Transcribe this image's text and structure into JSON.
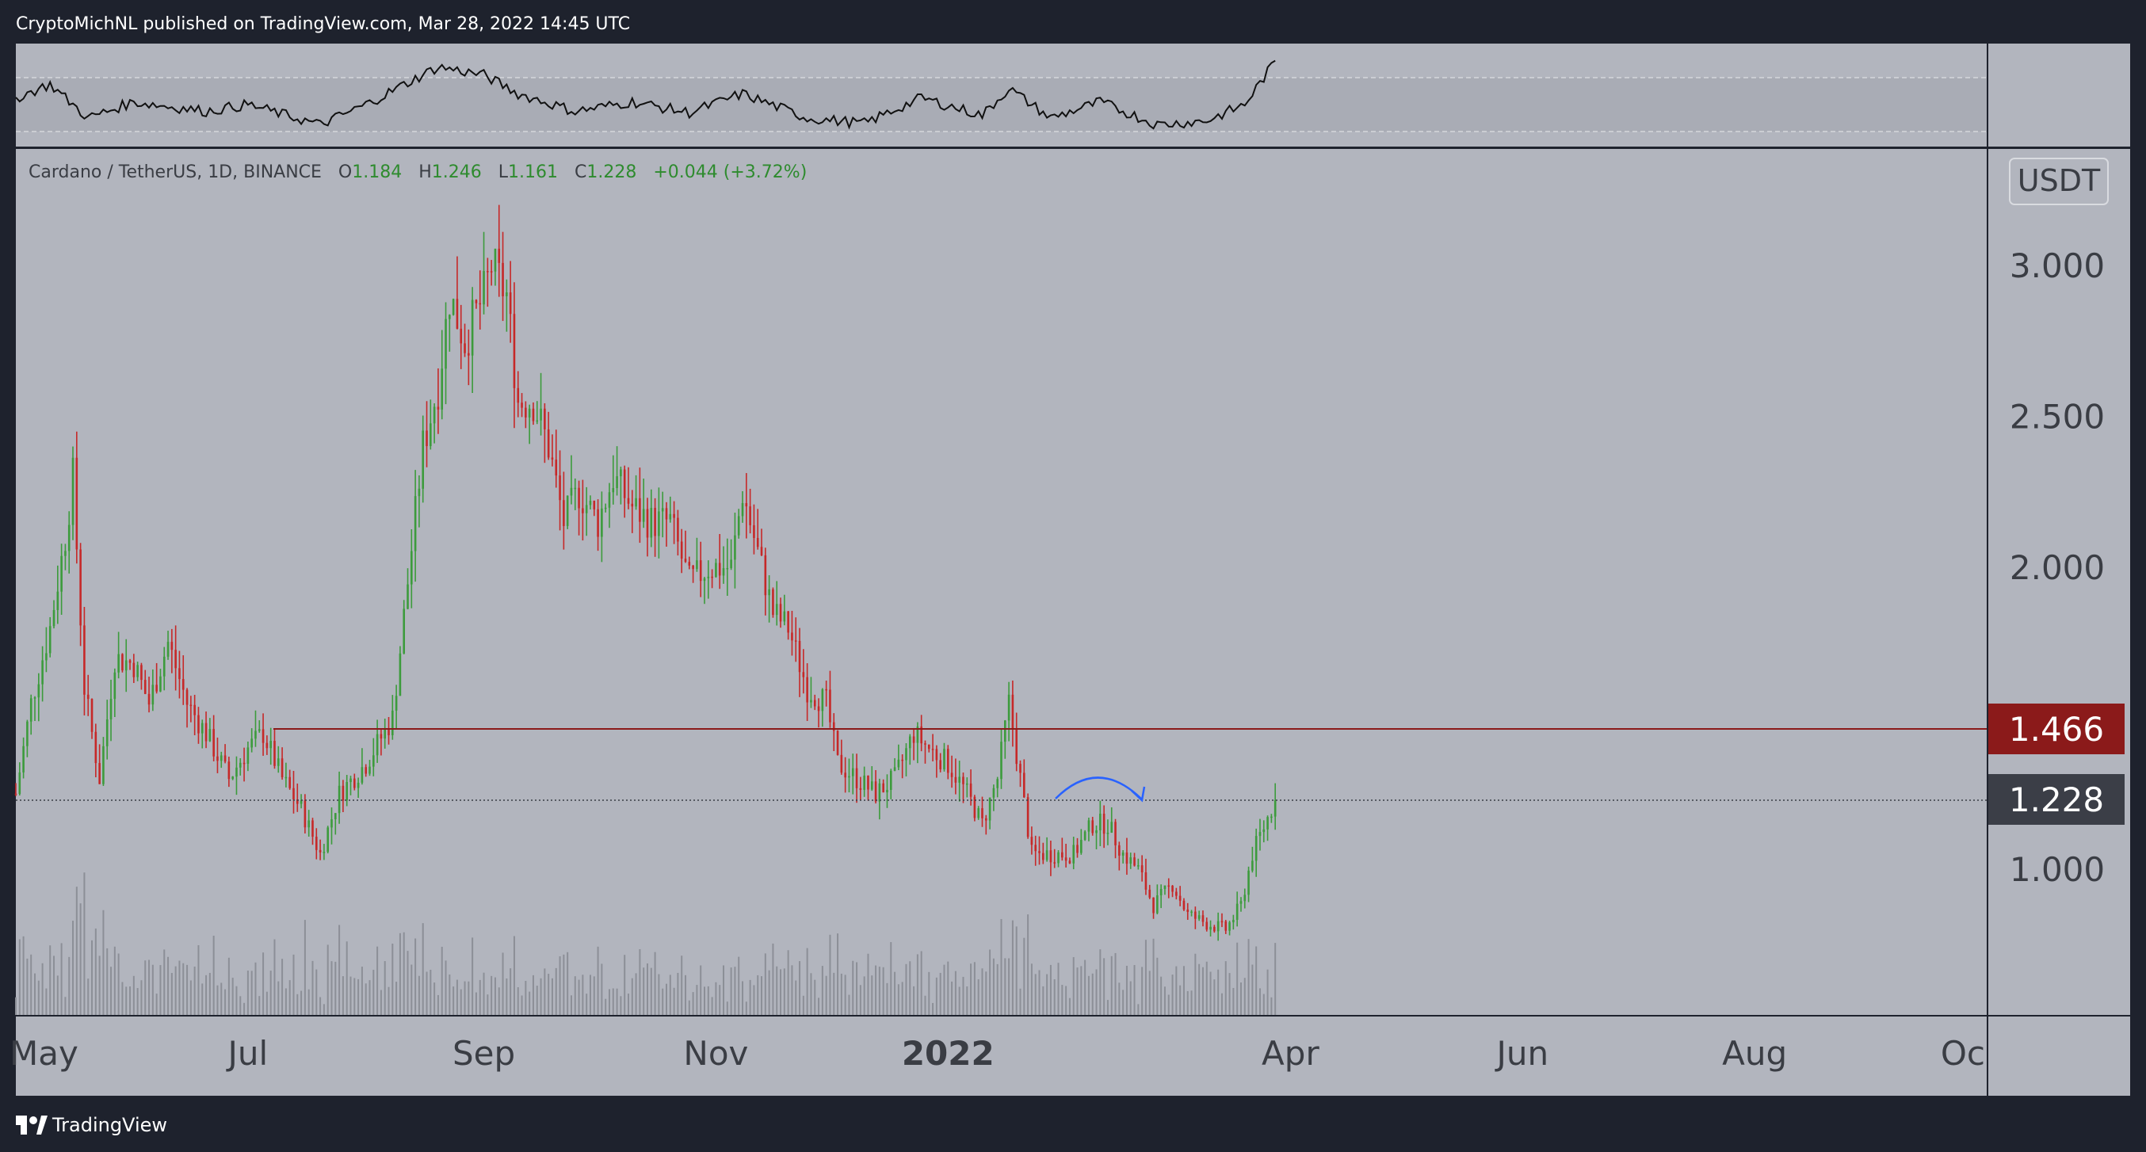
{
  "header": {
    "published": "CryptoMichNL published on TradingView.com, Mar 28, 2022 14:45 UTC"
  },
  "footer": {
    "brand": "TradingView"
  },
  "legend": {
    "symbol": "Cardano / TetherUS, 1D, BINANCE",
    "open_label": "O",
    "open": "1.184",
    "high_label": "H",
    "high": "1.246",
    "low_label": "L",
    "low": "1.161",
    "close_label": "C",
    "close": "1.228",
    "change": "+0.044 (+3.72%)"
  },
  "currency": "USDT",
  "price_tags": {
    "resistance": "1.466",
    "last": "1.228"
  },
  "colors": {
    "background": "#b2b5be",
    "frame": "#1e222d",
    "up": "#26a69a",
    "up_candle": "#3c9b3c",
    "down": "#c62828",
    "resistance_line": "#8b1a1a",
    "resistance_tag": "#8b1a1a",
    "last_tag": "#3b3e47",
    "arrow": "#2962ff",
    "text_dark": "#4a4e57",
    "legend_green": "#2e8b2e"
  },
  "chart_data": {
    "type": "candlestick",
    "pair": "ADA/USDT",
    "timeframe": "1D",
    "x_range": [
      "2021-05-01",
      "2022-10-01"
    ],
    "y_range": [
      0.5,
      3.5
    ],
    "y_ticks": [
      "3.000",
      "2.500",
      "2.000",
      "1.000"
    ],
    "y_tick_values": [
      3.0,
      2.5,
      2.0,
      1.0
    ],
    "x_ticks": [
      "May",
      "Jul",
      "Sep",
      "Nov",
      "2022",
      "Apr",
      "Jun",
      "Aug",
      "Oc"
    ],
    "x_tick_dates": [
      "2021-05-01",
      "2021-07-01",
      "2021-09-01",
      "2021-11-01",
      "2022-01-01",
      "2022-04-01",
      "2022-06-01",
      "2022-08-01",
      "2022-10-01"
    ],
    "resistance_level": 1.466,
    "last_price": 1.228,
    "price_path": [
      {
        "date": "2021-05-01",
        "close": 1.25
      },
      {
        "date": "2021-05-05",
        "close": 1.55
      },
      {
        "date": "2021-05-10",
        "close": 1.8
      },
      {
        "date": "2021-05-14",
        "close": 2.1
      },
      {
        "date": "2021-05-16",
        "close": 2.3
      },
      {
        "date": "2021-05-19",
        "close": 1.6
      },
      {
        "date": "2021-05-23",
        "close": 1.3
      },
      {
        "date": "2021-05-27",
        "close": 1.7
      },
      {
        "date": "2021-06-01",
        "close": 1.68
      },
      {
        "date": "2021-06-05",
        "close": 1.55
      },
      {
        "date": "2021-06-10",
        "close": 1.75
      },
      {
        "date": "2021-06-15",
        "close": 1.55
      },
      {
        "date": "2021-06-20",
        "close": 1.45
      },
      {
        "date": "2021-06-26",
        "close": 1.3
      },
      {
        "date": "2021-07-01",
        "close": 1.4
      },
      {
        "date": "2021-07-05",
        "close": 1.45
      },
      {
        "date": "2021-07-10",
        "close": 1.3
      },
      {
        "date": "2021-07-15",
        "close": 1.2
      },
      {
        "date": "2021-07-20",
        "close": 1.05
      },
      {
        "date": "2021-07-25",
        "close": 1.25
      },
      {
        "date": "2021-08-01",
        "close": 1.35
      },
      {
        "date": "2021-08-08",
        "close": 1.5
      },
      {
        "date": "2021-08-12",
        "close": 1.95
      },
      {
        "date": "2021-08-16",
        "close": 2.4
      },
      {
        "date": "2021-08-20",
        "close": 2.6
      },
      {
        "date": "2021-08-23",
        "close": 2.9
      },
      {
        "date": "2021-08-27",
        "close": 2.75
      },
      {
        "date": "2021-09-01",
        "close": 2.9
      },
      {
        "date": "2021-09-03",
        "close": 3.0
      },
      {
        "date": "2021-09-07",
        "close": 2.9
      },
      {
        "date": "2021-09-10",
        "close": 2.55
      },
      {
        "date": "2021-09-14",
        "close": 2.55
      },
      {
        "date": "2021-09-18",
        "close": 2.4
      },
      {
        "date": "2021-09-22",
        "close": 2.15
      },
      {
        "date": "2021-09-26",
        "close": 2.25
      },
      {
        "date": "2021-10-01",
        "close": 2.15
      },
      {
        "date": "2021-10-05",
        "close": 2.3
      },
      {
        "date": "2021-10-10",
        "close": 2.2
      },
      {
        "date": "2021-10-15",
        "close": 2.15
      },
      {
        "date": "2021-10-20",
        "close": 2.15
      },
      {
        "date": "2021-10-25",
        "close": 1.95
      },
      {
        "date": "2021-10-30",
        "close": 2.0
      },
      {
        "date": "2021-11-05",
        "close": 2.0
      },
      {
        "date": "2021-11-08",
        "close": 2.25
      },
      {
        "date": "2021-11-12",
        "close": 2.05
      },
      {
        "date": "2021-11-16",
        "close": 1.85
      },
      {
        "date": "2021-11-20",
        "close": 1.8
      },
      {
        "date": "2021-11-25",
        "close": 1.6
      },
      {
        "date": "2021-11-30",
        "close": 1.55
      },
      {
        "date": "2021-12-03",
        "close": 1.35
      },
      {
        "date": "2021-12-08",
        "close": 1.3
      },
      {
        "date": "2021-12-13",
        "close": 1.25
      },
      {
        "date": "2021-12-18",
        "close": 1.3
      },
      {
        "date": "2021-12-23",
        "close": 1.45
      },
      {
        "date": "2021-12-27",
        "close": 1.4
      },
      {
        "date": "2022-01-01",
        "close": 1.35
      },
      {
        "date": "2022-01-06",
        "close": 1.25
      },
      {
        "date": "2022-01-10",
        "close": 1.15
      },
      {
        "date": "2022-01-14",
        "close": 1.3
      },
      {
        "date": "2022-01-17",
        "close": 1.55
      },
      {
        "date": "2022-01-20",
        "close": 1.3
      },
      {
        "date": "2022-01-23",
        "close": 1.05
      },
      {
        "date": "2022-01-28",
        "close": 1.05
      },
      {
        "date": "2022-02-03",
        "close": 1.05
      },
      {
        "date": "2022-02-08",
        "close": 1.15
      },
      {
        "date": "2022-02-12",
        "close": 1.15
      },
      {
        "date": "2022-02-16",
        "close": 1.05
      },
      {
        "date": "2022-02-20",
        "close": 1.0
      },
      {
        "date": "2022-02-24",
        "close": 0.88
      },
      {
        "date": "2022-03-01",
        "close": 0.95
      },
      {
        "date": "2022-03-05",
        "close": 0.85
      },
      {
        "date": "2022-03-10",
        "close": 0.82
      },
      {
        "date": "2022-03-15",
        "close": 0.8
      },
      {
        "date": "2022-03-19",
        "close": 0.88
      },
      {
        "date": "2022-03-22",
        "close": 1.05
      },
      {
        "date": "2022-03-25",
        "close": 1.14
      },
      {
        "date": "2022-03-28",
        "close": 1.228
      }
    ],
    "volume_note": "relative daily volume bars along bottom of price pane",
    "oscillator": {
      "name": "",
      "band": [
        30,
        70
      ],
      "values": [
        {
          "date": "2021-05-01",
          "v": 55
        },
        {
          "date": "2021-05-10",
          "v": 65
        },
        {
          "date": "2021-05-20",
          "v": 40
        },
        {
          "date": "2021-06-01",
          "v": 52
        },
        {
          "date": "2021-06-20",
          "v": 45
        },
        {
          "date": "2021-07-01",
          "v": 50
        },
        {
          "date": "2021-07-20",
          "v": 35
        },
        {
          "date": "2021-08-01",
          "v": 50
        },
        {
          "date": "2021-08-20",
          "v": 78
        },
        {
          "date": "2021-09-01",
          "v": 72
        },
        {
          "date": "2021-09-10",
          "v": 58
        },
        {
          "date": "2021-09-25",
          "v": 45
        },
        {
          "date": "2021-10-10",
          "v": 52
        },
        {
          "date": "2021-10-25",
          "v": 44
        },
        {
          "date": "2021-11-08",
          "v": 58
        },
        {
          "date": "2021-11-25",
          "v": 40
        },
        {
          "date": "2021-12-10",
          "v": 36
        },
        {
          "date": "2021-12-25",
          "v": 55
        },
        {
          "date": "2022-01-10",
          "v": 42
        },
        {
          "date": "2022-01-17",
          "v": 62
        },
        {
          "date": "2022-01-28",
          "v": 40
        },
        {
          "date": "2022-02-10",
          "v": 52
        },
        {
          "date": "2022-02-25",
          "v": 35
        },
        {
          "date": "2022-03-10",
          "v": 38
        },
        {
          "date": "2022-03-20",
          "v": 50
        },
        {
          "date": "2022-03-28",
          "v": 82
        }
      ]
    }
  }
}
